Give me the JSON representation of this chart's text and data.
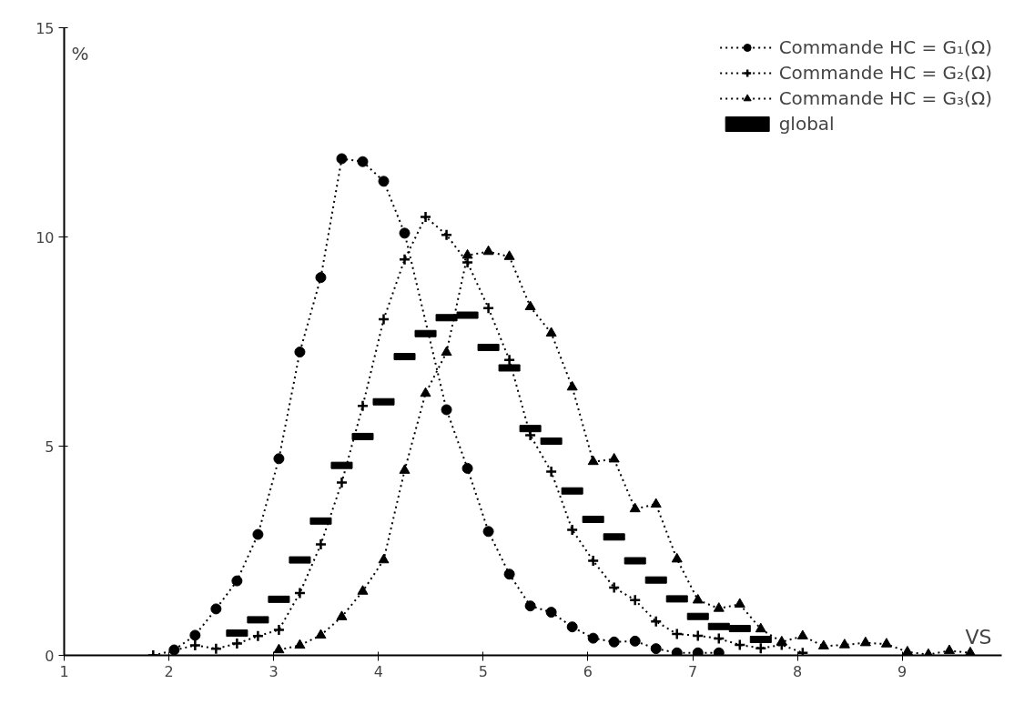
{
  "chart_data": {
    "type": "line",
    "xlabel": "VS",
    "ylabel": "%",
    "xlim": [
      1,
      9.95
    ],
    "ylim": [
      0,
      15
    ],
    "xticks": [
      1,
      2,
      3,
      4,
      5,
      6,
      7,
      8,
      9
    ],
    "yticks": [
      0,
      5,
      10,
      15
    ],
    "grid": false,
    "legend": "top right",
    "line_style": "dotted",
    "series": [
      {
        "name": "Commande HC = G₁(Ω)",
        "color": "#000000",
        "marker": "circle",
        "x": [
          2.05,
          2.25,
          2.45,
          2.65,
          2.85,
          3.05,
          3.25,
          3.45,
          3.65,
          3.85,
          4.05,
          4.25,
          4.65,
          4.85,
          5.05,
          5.25,
          5.45,
          5.65,
          5.85,
          6.05,
          6.25,
          6.45,
          6.65,
          6.85,
          7.05,
          7.25
        ],
        "values": [
          0.13,
          0.48,
          1.11,
          1.78,
          2.89,
          4.7,
          7.25,
          9.03,
          11.87,
          11.8,
          11.33,
          10.09,
          5.87,
          4.47,
          2.96,
          1.94,
          1.18,
          1.03,
          0.68,
          0.41,
          0.32,
          0.34,
          0.16,
          0.06,
          0.06,
          0.06
        ]
      },
      {
        "name": "Commande HC = G₂(Ω)",
        "color": "#000000",
        "marker": "cross",
        "x": [
          1.85,
          2.25,
          2.45,
          2.65,
          2.85,
          3.05,
          3.25,
          3.45,
          3.65,
          3.85,
          4.05,
          4.25,
          4.45,
          4.65,
          4.85,
          5.05,
          5.25,
          5.45,
          5.65,
          5.85,
          6.05,
          6.25,
          6.45,
          6.65,
          6.85,
          7.05,
          7.25,
          7.45,
          7.65,
          7.85,
          8.05
        ],
        "values": [
          0,
          0.24,
          0.16,
          0.28,
          0.46,
          0.61,
          1.49,
          2.65,
          4.13,
          5.96,
          8.03,
          9.46,
          10.48,
          10.05,
          9.39,
          8.3,
          7.06,
          5.26,
          4.39,
          3.0,
          2.26,
          1.62,
          1.32,
          0.81,
          0.51,
          0.47,
          0.4,
          0.25,
          0.17,
          0.25,
          0.06
        ]
      },
      {
        "name": "Commande HC = G₃(Ω)",
        "color": "#000000",
        "marker": "triangle",
        "x": [
          3.05,
          3.25,
          3.45,
          3.65,
          3.85,
          4.05,
          4.25,
          4.45,
          4.65,
          4.85,
          5.05,
          5.25,
          5.45,
          5.65,
          5.85,
          6.05,
          6.25,
          6.45,
          6.65,
          6.85,
          7.05,
          7.25,
          7.45,
          7.65,
          7.85,
          8.05,
          8.25,
          8.45,
          8.65,
          8.85,
          9.05,
          9.25,
          9.45,
          9.65
        ],
        "values": [
          0.13,
          0.24,
          0.48,
          0.92,
          1.53,
          2.28,
          4.42,
          6.26,
          7.24,
          9.56,
          9.65,
          9.53,
          8.33,
          7.7,
          6.41,
          4.63,
          4.69,
          3.5,
          3.61,
          2.3,
          1.32,
          1.12,
          1.22,
          0.63,
          0.32,
          0.46,
          0.22,
          0.25,
          0.3,
          0.27,
          0.08,
          0.02,
          0.11,
          0.06
        ]
      },
      {
        "name": "global",
        "color": "#000000",
        "type": "scatter",
        "marker": "square",
        "x": [
          2.65,
          2.85,
          3.05,
          3.25,
          3.45,
          3.65,
          3.85,
          4.05,
          4.25,
          4.45,
          4.65,
          4.85,
          5.05,
          5.25,
          5.45,
          5.65,
          5.85,
          6.05,
          6.25,
          6.45,
          6.65,
          6.85,
          7.05,
          7.25,
          7.45,
          7.65
        ],
        "values": [
          0.53,
          0.85,
          1.34,
          2.28,
          3.21,
          4.54,
          5.23,
          6.06,
          7.14,
          7.69,
          8.07,
          8.13,
          7.36,
          6.87,
          5.42,
          5.12,
          3.93,
          3.25,
          2.83,
          2.26,
          1.8,
          1.35,
          0.93,
          0.69,
          0.64,
          0.38
        ]
      }
    ]
  }
}
